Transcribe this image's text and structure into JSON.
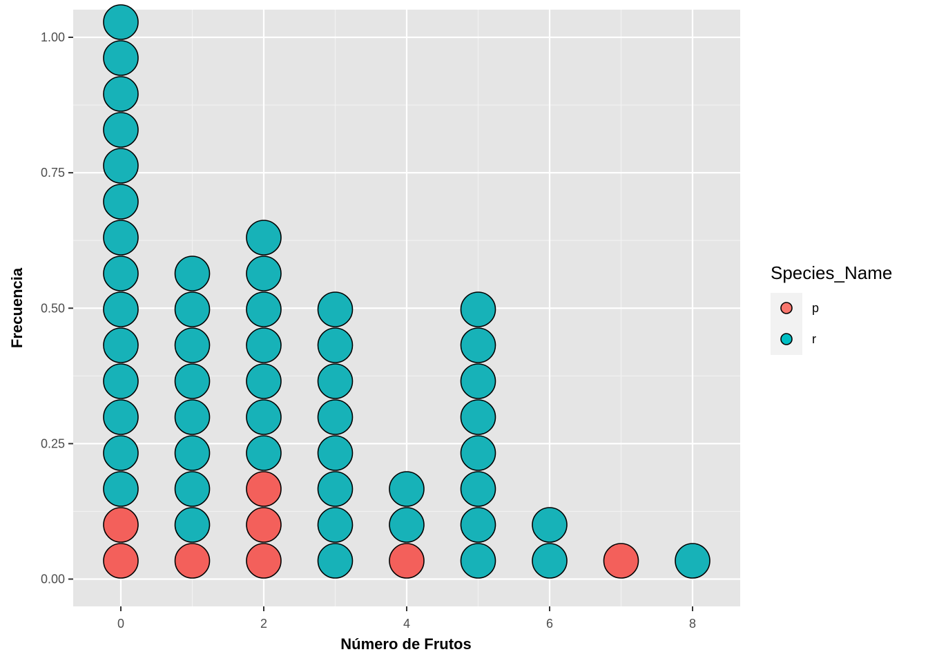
{
  "chart_data": {
    "type": "dotplot",
    "xlabel": "Número de Frutos",
    "ylabel": "Frecuencia",
    "xlim": [
      -0.65,
      8.7
    ],
    "ylim": [
      -0.05,
      1.05
    ],
    "x_ticks": [
      0,
      2,
      4,
      6,
      8
    ],
    "x_tick_labels": [
      "0",
      "2",
      "4",
      "6",
      "8"
    ],
    "x_minor_ticks": [
      1,
      3,
      5,
      7
    ],
    "y_ticks": [
      0,
      0.25,
      0.5,
      0.75,
      1
    ],
    "y_tick_labels": [
      "0.00",
      "0.25",
      "0.50",
      "0.75",
      "1.00"
    ],
    "y_minor_ticks": [
      0.125,
      0.375,
      0.625,
      0.875
    ],
    "grid": true,
    "legend": {
      "title": "Species_Name",
      "position": "right",
      "entries": [
        {
          "label": "p",
          "color": "#F8766D"
        },
        {
          "label": "r",
          "color": "#00BFC4"
        }
      ]
    },
    "dot_colors": {
      "p": "#F3605B",
      "r": "#17B2B8"
    },
    "stacks": [
      {
        "x": 0,
        "p": 2,
        "r": 14
      },
      {
        "x": 1,
        "p": 1,
        "r": 8
      },
      {
        "x": 2,
        "p": 3,
        "r": 7
      },
      {
        "x": 3,
        "p": 0,
        "r": 8
      },
      {
        "x": 4,
        "p": 1,
        "r": 2
      },
      {
        "x": 5,
        "p": 0,
        "r": 8
      },
      {
        "x": 6,
        "p": 0,
        "r": 2
      },
      {
        "x": 7,
        "p": 1,
        "r": 0
      },
      {
        "x": 8,
        "p": 0,
        "r": 1
      }
    ]
  }
}
